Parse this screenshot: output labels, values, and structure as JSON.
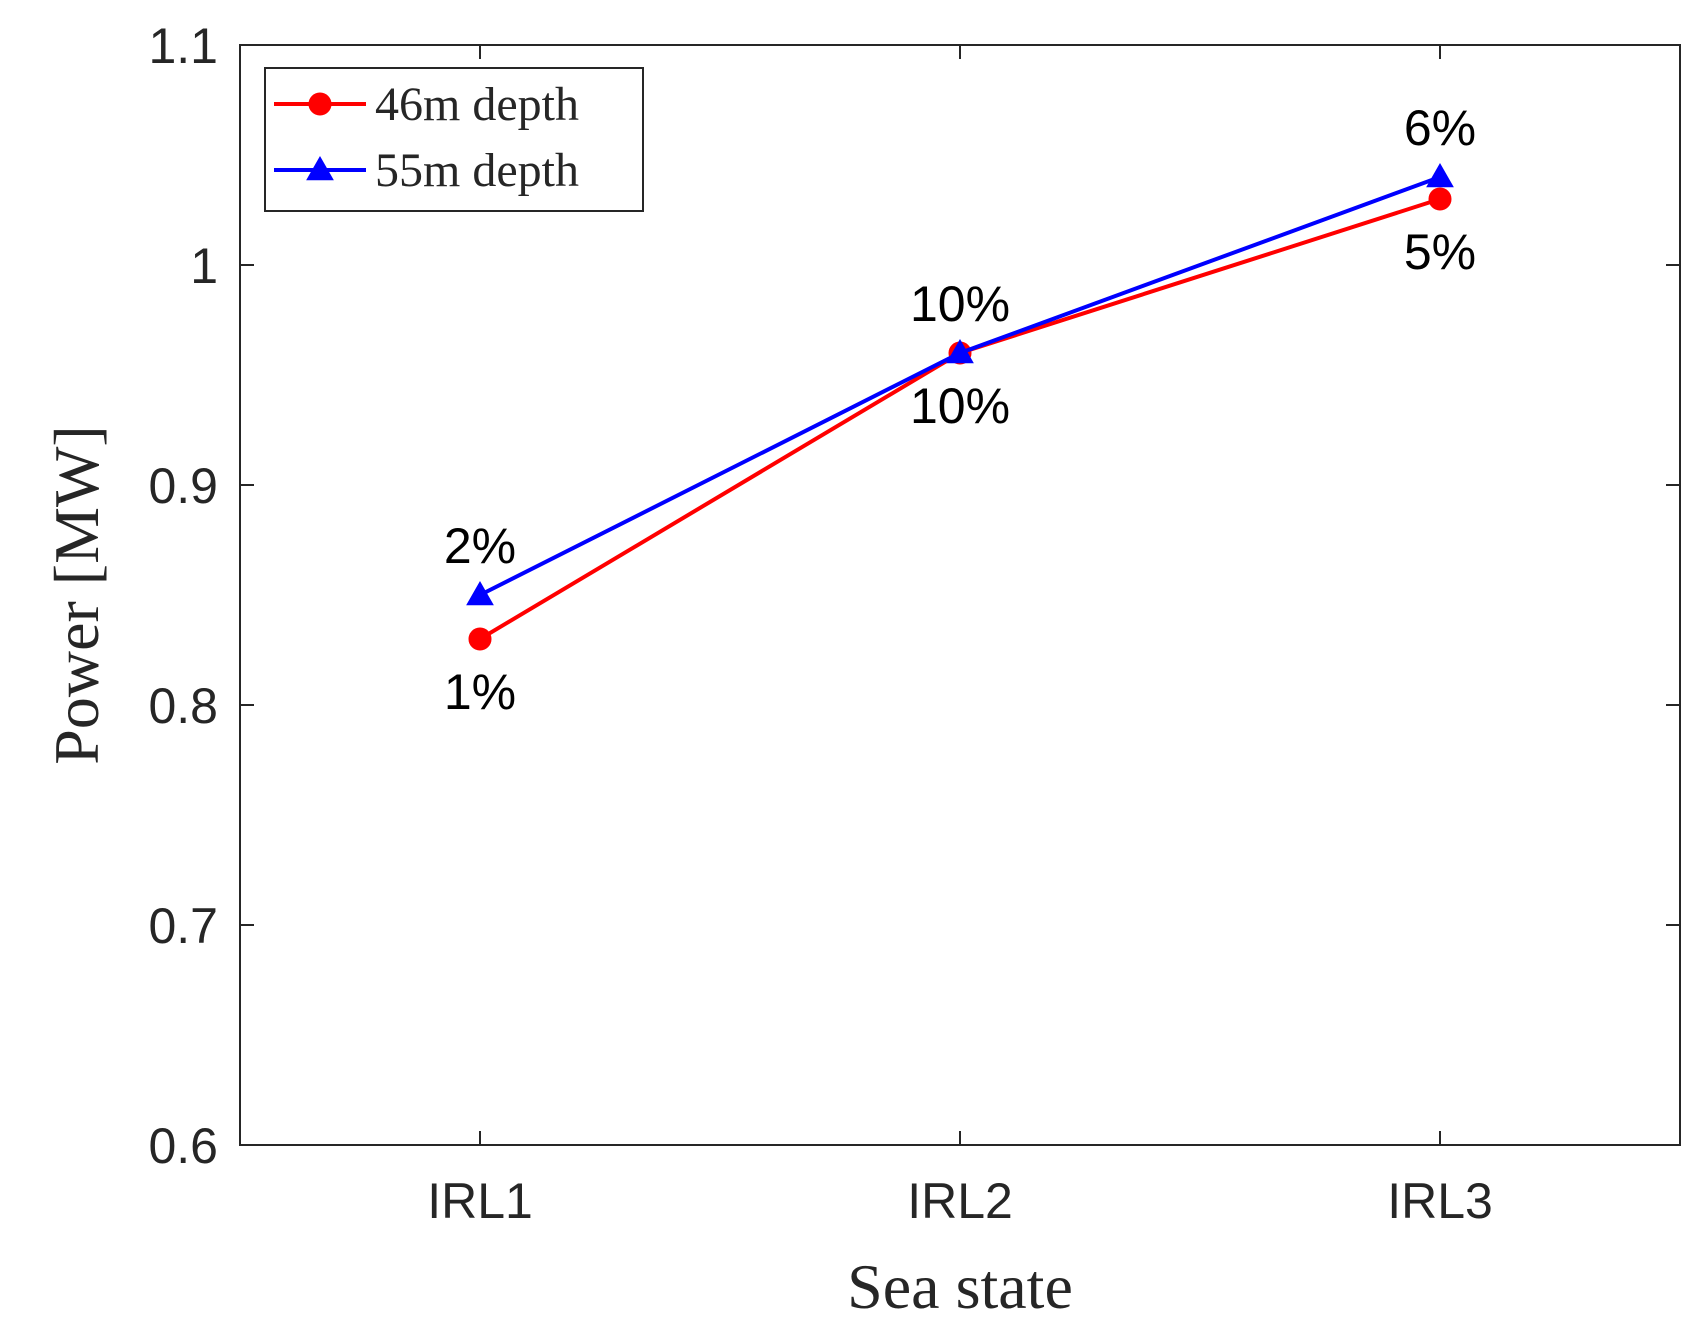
{
  "chart_data": {
    "type": "line",
    "title": "",
    "xlabel": "Sea state",
    "ylabel": "Power [MW]",
    "categories": [
      "IRL1",
      "IRL2",
      "IRL3"
    ],
    "ylim": [
      0.6,
      1.1
    ],
    "yticks": [
      0.6,
      0.7,
      0.8,
      0.9,
      1,
      1.1
    ],
    "ytick_labels": [
      "0.6",
      "0.7",
      "0.8",
      "0.9",
      "1",
      "1.1"
    ],
    "grid": false,
    "legend_position": "top-left",
    "series": [
      {
        "name": "46m depth",
        "color": "#ff0000",
        "marker": "circle",
        "values": [
          0.83,
          0.96,
          1.03
        ],
        "labels": [
          "1%",
          "10%",
          "5%"
        ],
        "label_position": "below"
      },
      {
        "name": "55m depth",
        "color": "#0000ff",
        "marker": "triangle",
        "values": [
          0.85,
          0.96,
          1.04
        ],
        "labels": [
          "2%",
          "10%",
          "6%"
        ],
        "label_position": "above"
      }
    ]
  }
}
